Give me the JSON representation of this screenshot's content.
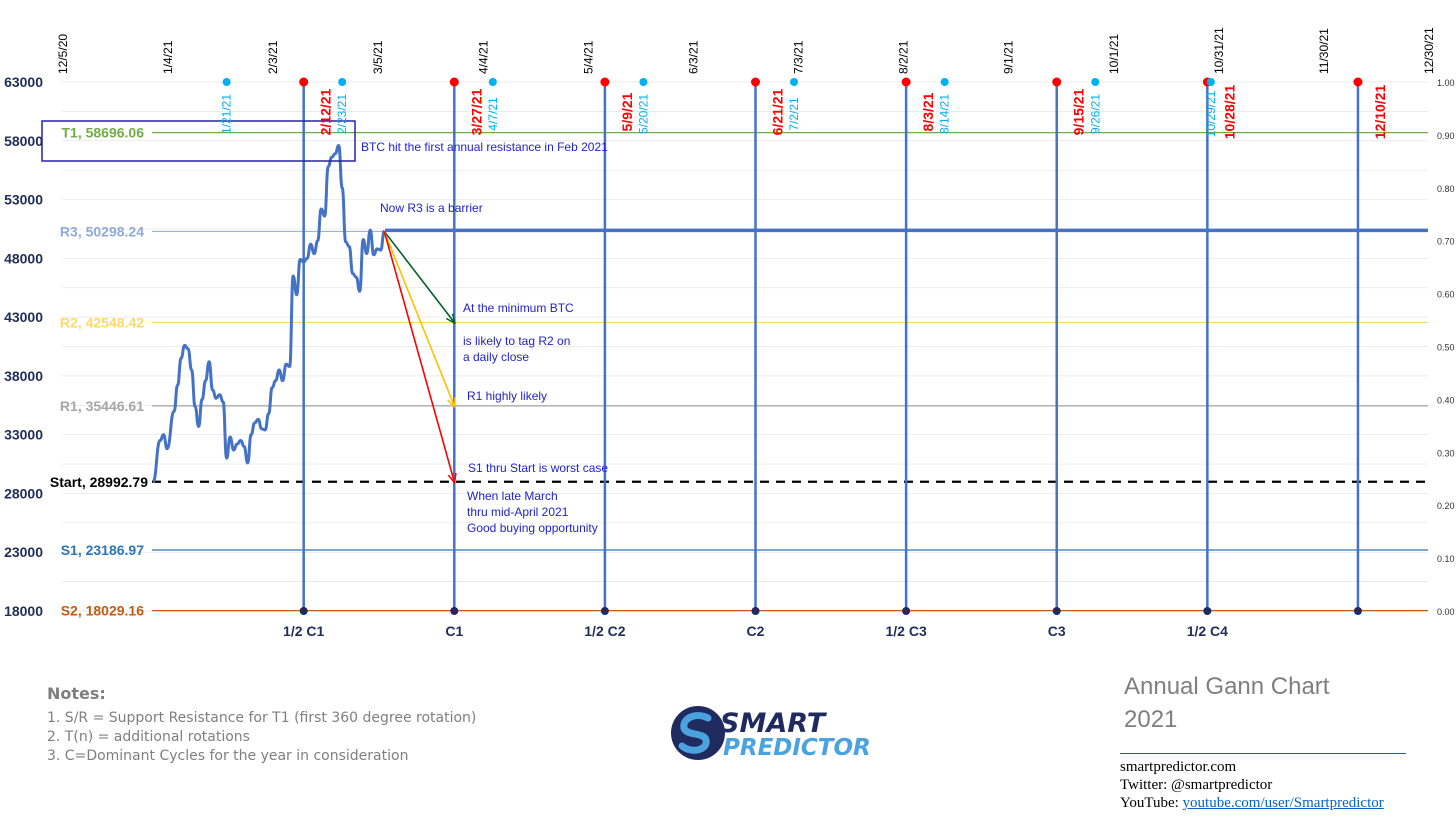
{
  "chart_data": {
    "type": "line",
    "y_left": {
      "ticks": [
        18000,
        23000,
        28000,
        33000,
        38000,
        43000,
        48000,
        53000,
        58000,
        63000
      ],
      "range": [
        18000,
        63000
      ]
    },
    "y_right": {
      "ticks": [
        "0.00",
        "0.10",
        "0.20",
        "0.30",
        "0.40",
        "0.50",
        "0.60",
        "0.70",
        "0.80",
        "0.90",
        "1.00"
      ],
      "range": [
        0,
        1
      ]
    },
    "x_dates": [
      {
        "label": "12/5/20",
        "date": "2020-12-05"
      },
      {
        "label": "1/4/21",
        "date": "2021-01-04"
      },
      {
        "label": "2/3/21",
        "date": "2021-02-03"
      },
      {
        "label": "3/5/21",
        "date": "2021-03-05"
      },
      {
        "label": "4/4/21",
        "date": "2021-04-04"
      },
      {
        "label": "5/4/21",
        "date": "2021-05-04"
      },
      {
        "label": "6/3/21",
        "date": "2021-06-03"
      },
      {
        "label": "7/3/21",
        "date": "2021-07-03"
      },
      {
        "label": "8/2/21",
        "date": "2021-08-02"
      },
      {
        "label": "9/1/21",
        "date": "2021-09-01"
      },
      {
        "label": "10/1/21",
        "date": "2021-10-01"
      },
      {
        "label": "10/31/21",
        "date": "2021-10-31"
      },
      {
        "label": "11/30/21",
        "date": "2021-11-30"
      },
      {
        "label": "12/30/21",
        "date": "2021-12-30"
      }
    ],
    "levels": [
      {
        "label": "T1, 58696.06",
        "value": 58696.06,
        "color": "#70ad47"
      },
      {
        "label": "R3, 50298.24",
        "value": 50298.24,
        "color": "#8ea9db"
      },
      {
        "label": "R2, 42548.42",
        "value": 42548.42,
        "color": "#ffd966"
      },
      {
        "label": "R1, 35446.61",
        "value": 35446.61,
        "color": "#a6a6a6"
      },
      {
        "label": "Start, 28992.79",
        "value": 28992.79,
        "color": "#000000"
      },
      {
        "label": "S1, 23186.97",
        "value": 23186.97,
        "color": "#2e75b6"
      },
      {
        "label": "S2, 18029.16",
        "value": 18029.16,
        "color": "#c55a11"
      }
    ],
    "red_dates": [
      {
        "label": "2/12/21",
        "date": "2021-02-12"
      },
      {
        "label": "3/27/21",
        "date": "2021-03-27"
      },
      {
        "label": "5/9/21",
        "date": "2021-05-09"
      },
      {
        "label": "6/21/21",
        "date": "2021-06-21"
      },
      {
        "label": "8/3/21",
        "date": "2021-08-03"
      },
      {
        "label": "9/15/21",
        "date": "2021-09-15"
      },
      {
        "label": "10/28/21",
        "date": "2021-10-28"
      },
      {
        "label": "12/10/21",
        "date": "2021-12-10"
      }
    ],
    "cyan_dates": [
      {
        "label": "1/21/21",
        "date": "2021-01-21"
      },
      {
        "label": "2/23/21",
        "date": "2021-02-23"
      },
      {
        "label": "4/7/21",
        "date": "2021-04-07"
      },
      {
        "label": "5/20/21",
        "date": "2021-05-20"
      },
      {
        "label": "7/2/21",
        "date": "2021-07-02"
      },
      {
        "label": "8/14/21",
        "date": "2021-08-14"
      },
      {
        "label": "9/26/21",
        "date": "2021-09-26"
      },
      {
        "label": "10/29/21",
        "date": "2021-10-29"
      }
    ],
    "cycles": [
      {
        "label": "1/2 C1",
        "date": "2021-02-12"
      },
      {
        "label": "C1",
        "date": "2021-03-27"
      },
      {
        "label": "1/2 C2",
        "date": "2021-05-09"
      },
      {
        "label": "C2",
        "date": "2021-06-21"
      },
      {
        "label": "1/2 C3",
        "date": "2021-08-03"
      },
      {
        "label": "C3",
        "date": "2021-09-15"
      },
      {
        "label": "1/2 C4",
        "date": "2021-10-28"
      },
      {
        "label": "",
        "date": "2021-12-10"
      }
    ],
    "price_series": {
      "name": "",
      "points": [
        [
          "2020-12-31",
          29000
        ],
        [
          "2021-01-02",
          32500
        ],
        [
          "2021-01-03",
          33000
        ],
        [
          "2021-01-04",
          31800
        ],
        [
          "2021-01-06",
          35000
        ],
        [
          "2021-01-07",
          37200
        ],
        [
          "2021-01-08",
          39500
        ],
        [
          "2021-01-09",
          40600
        ],
        [
          "2021-01-10",
          40300
        ],
        [
          "2021-01-11",
          38500
        ],
        [
          "2021-01-12",
          35400
        ],
        [
          "2021-01-13",
          33700
        ],
        [
          "2021-01-14",
          36000
        ],
        [
          "2021-01-15",
          37600
        ],
        [
          "2021-01-16",
          39200
        ],
        [
          "2021-01-17",
          36800
        ],
        [
          "2021-01-18",
          36100
        ],
        [
          "2021-01-19",
          36400
        ],
        [
          "2021-01-20",
          35800
        ],
        [
          "2021-01-21",
          31000
        ],
        [
          "2021-01-22",
          32800
        ],
        [
          "2021-01-23",
          31700
        ],
        [
          "2021-01-24",
          32200
        ],
        [
          "2021-01-25",
          32500
        ],
        [
          "2021-01-26",
          32000
        ],
        [
          "2021-01-27",
          30600
        ],
        [
          "2021-01-28",
          33000
        ],
        [
          "2021-01-29",
          34000
        ],
        [
          "2021-01-30",
          34300
        ],
        [
          "2021-01-31",
          33500
        ],
        [
          "2021-02-01",
          33400
        ],
        [
          "2021-02-02",
          34800
        ],
        [
          "2021-02-03",
          37000
        ],
        [
          "2021-02-04",
          37600
        ],
        [
          "2021-02-05",
          38500
        ],
        [
          "2021-02-06",
          37600
        ],
        [
          "2021-02-07",
          39000
        ],
        [
          "2021-02-08",
          38800
        ],
        [
          "2021-02-09",
          46500
        ],
        [
          "2021-02-10",
          44900
        ],
        [
          "2021-02-11",
          47900
        ],
        [
          "2021-02-12",
          47700
        ],
        [
          "2021-02-13",
          48000
        ],
        [
          "2021-02-14",
          49200
        ],
        [
          "2021-02-15",
          48400
        ],
        [
          "2021-02-16",
          49500
        ],
        [
          "2021-02-17",
          52200
        ],
        [
          "2021-02-18",
          51600
        ],
        [
          "2021-02-19",
          55800
        ],
        [
          "2021-02-20",
          56600
        ],
        [
          "2021-02-21",
          56900
        ],
        [
          "2021-02-22",
          57600
        ],
        [
          "2021-02-23",
          54000
        ],
        [
          "2021-02-24",
          49400
        ],
        [
          "2021-02-25",
          49000
        ],
        [
          "2021-02-26",
          46700
        ],
        [
          "2021-02-27",
          46400
        ],
        [
          "2021-02-28",
          45200
        ],
        [
          "2021-03-01",
          49600
        ],
        [
          "2021-03-02",
          48400
        ],
        [
          "2021-03-03",
          50400
        ],
        [
          "2021-03-04",
          48300
        ],
        [
          "2021-03-05",
          48800
        ],
        [
          "2021-03-06",
          48700
        ],
        [
          "2021-03-07",
          50300
        ]
      ]
    },
    "projections": [
      {
        "from": [
          "2021-03-07",
          50298.24
        ],
        "to": [
          "2021-03-27",
          42548.42
        ],
        "color": "#00612e"
      },
      {
        "from": [
          "2021-03-07",
          50298.24
        ],
        "to": [
          "2021-03-27",
          35446.61
        ],
        "color": "#ffc000"
      },
      {
        "from": [
          "2021-03-07",
          50298.24
        ],
        "to": [
          "2021-03-27",
          28992.79
        ],
        "color": "#ff0000"
      }
    ],
    "annotations": [
      "BTC hit the first annual resistance in Feb 2021",
      "Now R3 is a barrier",
      "At the minimum BTC",
      "is likely to tag R2 on",
      "a daily close",
      "R1 highly likely",
      "S1 thru Start is worst case",
      "When late March",
      "thru mid-April 2021",
      "Good buying opportunity"
    ]
  },
  "notes": {
    "title": "Notes:",
    "lines": [
      "1. S/R = Support Resistance for T1 (first 360 degree rotation)",
      "2. T(n) = additional rotations",
      "3. C=Dominant Cycles for the year in consideration"
    ]
  },
  "logo": {
    "line1": "SMART",
    "line2": "PREDICTOR"
  },
  "chart_title": {
    "line1": "Annual Gann Chart",
    "line2": "2021"
  },
  "contact": {
    "website": "smartpredictor.com",
    "twitter": "Twitter: @smartpredictor",
    "youtube_prefix": "YouTube: ",
    "youtube_link": "youtube.com/user/Smartpredictor"
  },
  "colors": {
    "axis_text": "#1f2d5a",
    "blue_line": "#4472c4",
    "annotation_text": "#2222cc",
    "red_marker": "#ff0000",
    "cyan_marker": "#00b0f0"
  }
}
